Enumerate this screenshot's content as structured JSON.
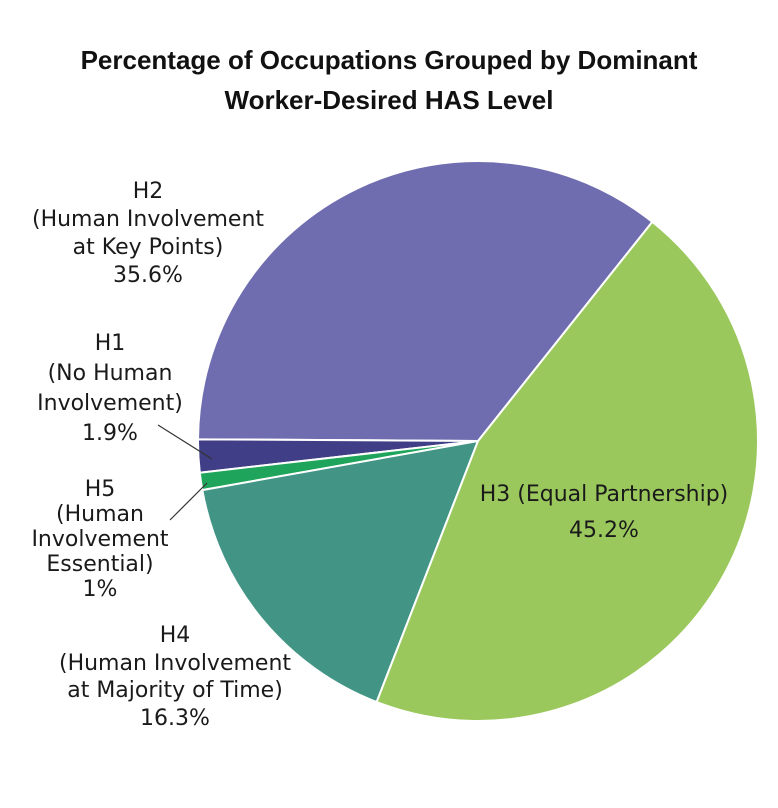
{
  "chart_data": {
    "type": "pie",
    "title": "Percentage of Occupations Grouped by Dominant\nWorker-Desired HAS Level",
    "categories": [
      "H3 (Equal Partnership)",
      "H4\n(Human Involvement\nat Majority of Time)",
      "H5\n(Human\nInvolvement\nEssential)",
      "H1\n(No Human\nInvolvement)",
      "H2\n(Human Involvement\nat Key Points)"
    ],
    "values": [
      45.2,
      16.3,
      1,
      1.9,
      35.6
    ],
    "value_labels": [
      "45.2%",
      "16.3%",
      "1%",
      "1.9%",
      "35.6%"
    ],
    "colors": [
      "#9bc85d",
      "#429485",
      "#1ea45b",
      "#3f3e86",
      "#6f6daf"
    ]
  }
}
